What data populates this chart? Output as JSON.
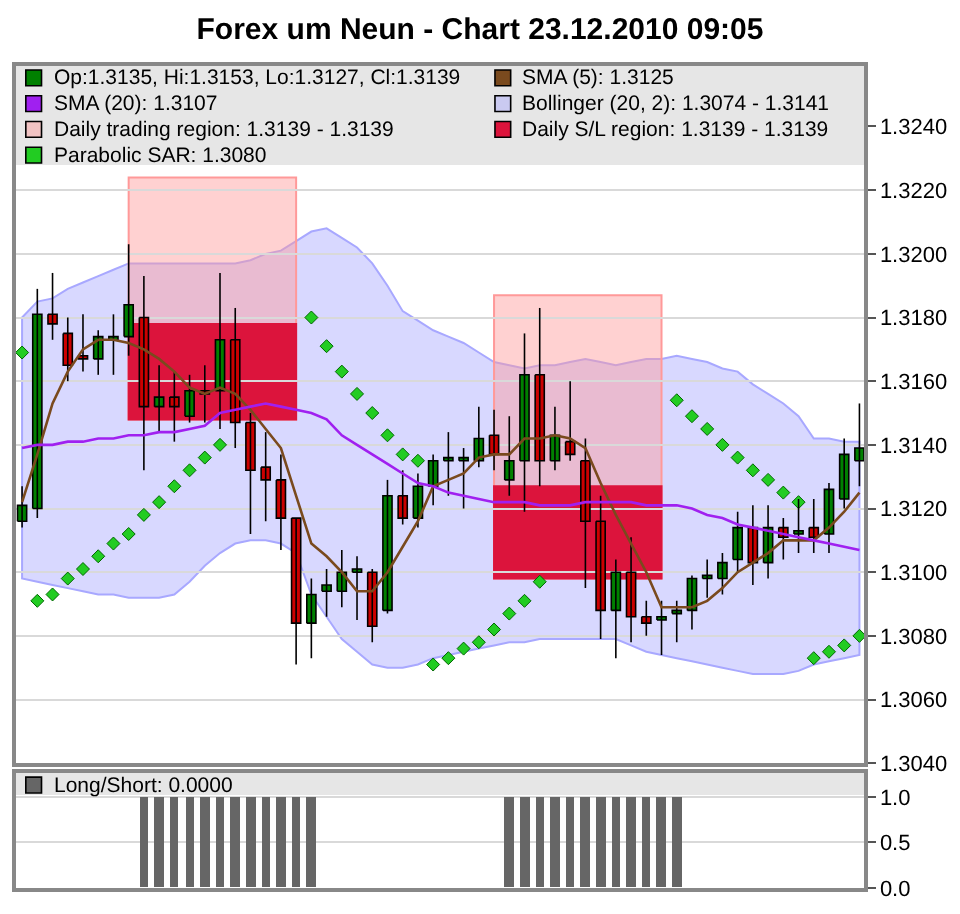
{
  "chart_data": [
    {
      "type": "candlestick",
      "title": "Forex um Neun - Chart 23.12.2010 09:05",
      "categories": [
        null,
        null,
        null,
        null,
        null,
        null,
        null,
        null,
        null,
        null,
        null,
        null,
        null,
        null,
        null,
        null,
        null,
        null,
        null,
        null,
        null,
        null,
        null,
        null,
        null,
        null,
        null,
        null,
        null,
        null,
        null,
        null,
        null,
        null,
        null,
        null,
        null,
        null,
        null,
        null,
        null,
        null,
        null,
        null,
        null,
        null,
        null,
        null,
        null,
        null,
        null,
        null,
        null,
        null,
        null,
        null
      ],
      "ylim": [
        1.304,
        1.3259
      ],
      "yticks": [
        {
          "value": 1.304,
          "label": "1.3040"
        },
        {
          "value": 1.306,
          "label": "1.3060"
        },
        {
          "value": 1.308,
          "label": "1.3080"
        },
        {
          "value": 1.31,
          "label": "1.3100"
        },
        {
          "value": 1.312,
          "label": "1.3120"
        },
        {
          "value": 1.314,
          "label": "1.3140"
        },
        {
          "value": 1.316,
          "label": "1.3160"
        },
        {
          "value": 1.318,
          "label": "1.3180"
        },
        {
          "value": 1.32,
          "label": "1.3200"
        },
        {
          "value": 1.322,
          "label": "1.3220"
        },
        {
          "value": 1.324,
          "label": "1.3240"
        }
      ],
      "grid": "y",
      "legend": "top",
      "series": [
        {
          "type": "candlestick",
          "name": "Op:1.3135, Hi:1.3153, Lo:1.3127, Cl:1.3139",
          "colors": [
            "#008000",
            "#008000",
            "#cc0000",
            "#cc0000",
            "#cc0000",
            "#008000",
            "#008000",
            "#008000",
            "#cc0000",
            "#008000",
            "#cc0000",
            "#008000",
            "#cc0000",
            "#008000",
            "#cc0000",
            "#cc0000",
            "#cc0000",
            "#cc0000",
            "#cc0000",
            "#008000",
            "#008000",
            "#008000",
            "#008000",
            "#cc0000",
            "#008000",
            "#cc0000",
            "#008000",
            "#008000",
            "#008000",
            "#008000",
            "#008000",
            "#cc0000",
            "#008000",
            "#008000",
            "#cc0000",
            "#008000",
            "#cc0000",
            "#cc0000",
            "#cc0000",
            "#008000",
            "#cc0000",
            "#cc0000",
            "#008000",
            "#008000",
            "#008000",
            "#008000",
            "#008000",
            "#008000",
            "#cc0000",
            "#008000",
            "#cc0000",
            "#008000",
            "#cc0000",
            "#008000",
            "#008000",
            "#008000"
          ],
          "ohlc": [
            [
              1.3116,
              1.3127,
              1.3114,
              1.3121
            ],
            [
              1.312,
              1.3189,
              1.3117,
              1.3181
            ],
            [
              1.3181,
              1.3194,
              1.3173,
              1.3178
            ],
            [
              1.3175,
              1.318,
              1.316,
              1.3165
            ],
            [
              1.3168,
              1.3181,
              1.3163,
              1.3167
            ],
            [
              1.3167,
              1.3176,
              1.3162,
              1.3174
            ],
            [
              1.3173,
              1.3181,
              1.3162,
              1.3174
            ],
            [
              1.3174,
              1.3203,
              1.3168,
              1.3184
            ],
            [
              1.318,
              1.3193,
              1.3132,
              1.3152
            ],
            [
              1.3152,
              1.3165,
              1.3144,
              1.3155
            ],
            [
              1.3155,
              1.3163,
              1.3141,
              1.3152
            ],
            [
              1.3149,
              1.3162,
              1.3147,
              1.3157
            ],
            [
              1.3157,
              1.3165,
              1.3147,
              1.3156
            ],
            [
              1.3157,
              1.3194,
              1.3145,
              1.3173
            ],
            [
              1.3173,
              1.3183,
              1.3139,
              1.3147
            ],
            [
              1.3147,
              1.315,
              1.3112,
              1.3132
            ],
            [
              1.3133,
              1.3144,
              1.3116,
              1.3129
            ],
            [
              1.3129,
              1.3137,
              1.3107,
              1.3117
            ],
            [
              1.3117,
              1.3117,
              1.3071,
              1.3084
            ],
            [
              1.3084,
              1.3098,
              1.3073,
              1.3093
            ],
            [
              1.3094,
              1.3101,
              1.3086,
              1.3096
            ],
            [
              1.3094,
              1.3107,
              1.3089,
              1.31
            ],
            [
              1.31,
              1.3105,
              1.3085,
              1.3101
            ],
            [
              1.31,
              1.3101,
              1.3078,
              1.3083
            ],
            [
              1.3088,
              1.3129,
              1.3087,
              1.3124
            ],
            [
              1.3124,
              1.3132,
              1.3115,
              1.3117
            ],
            [
              1.3117,
              1.3131,
              1.3114,
              1.3127
            ],
            [
              1.3127,
              1.3137,
              1.3121,
              1.3135
            ],
            [
              1.3135,
              1.3144,
              1.3124,
              1.3136
            ],
            [
              1.3135,
              1.3139,
              1.312,
              1.3136
            ],
            [
              1.3135,
              1.3152,
              1.3133,
              1.3142
            ],
            [
              1.3143,
              1.3151,
              1.3132,
              1.3137
            ],
            [
              1.3129,
              1.3149,
              1.3124,
              1.3135
            ],
            [
              1.3135,
              1.3175,
              1.3119,
              1.3162
            ],
            [
              1.3162,
              1.3183,
              1.3127,
              1.3135
            ],
            [
              1.3135,
              1.3152,
              1.3132,
              1.3143
            ],
            [
              1.3141,
              1.316,
              1.3135,
              1.3137
            ],
            [
              1.3135,
              1.3142,
              1.3095,
              1.3116
            ],
            [
              1.3116,
              1.3124,
              1.3079,
              1.3088
            ],
            [
              1.3088,
              1.3104,
              1.3073,
              1.31
            ],
            [
              1.31,
              1.3111,
              1.3078,
              1.3086
            ],
            [
              1.3086,
              1.3091,
              1.308,
              1.3084
            ],
            [
              1.3085,
              1.3091,
              1.3074,
              1.3086
            ],
            [
              1.3087,
              1.3091,
              1.3078,
              1.3088
            ],
            [
              1.3088,
              1.3099,
              1.3082,
              1.3098
            ],
            [
              1.3098,
              1.3104,
              1.3092,
              1.3099
            ],
            [
              1.3098,
              1.3106,
              1.3093,
              1.3103
            ],
            [
              1.3104,
              1.3119,
              1.31,
              1.3114
            ],
            [
              1.3114,
              1.3121,
              1.3096,
              1.3103
            ],
            [
              1.3103,
              1.3121,
              1.3098,
              1.3114
            ],
            [
              1.3114,
              1.3117,
              1.3104,
              1.3111
            ],
            [
              1.3112,
              1.3123,
              1.3106,
              1.3113
            ],
            [
              1.3114,
              1.3123,
              1.3106,
              1.3111
            ],
            [
              1.3112,
              1.3128,
              1.3106,
              1.3126
            ],
            [
              1.3123,
              1.3142,
              1.312,
              1.3137
            ],
            [
              1.3135,
              1.3153,
              1.3127,
              1.3139
            ]
          ]
        },
        {
          "type": "line",
          "name": "SMA (5): 1.3125",
          "color": "#7a4a1e",
          "values": [
            1.3122,
            1.3137,
            1.3153,
            1.3163,
            1.317,
            1.3173,
            1.3173,
            1.3172,
            1.317,
            1.3167,
            1.3163,
            1.3158,
            1.3156,
            1.3158,
            1.3156,
            1.3151,
            1.3145,
            1.3139,
            1.3124,
            1.3109,
            1.3105,
            1.31,
            1.3094,
            1.3094,
            1.31,
            1.3108,
            1.3116,
            1.3127,
            1.3129,
            1.3131,
            1.3136,
            1.3137,
            1.3137,
            1.3142,
            1.3142,
            1.3143,
            1.3142,
            1.3139,
            1.3128,
            1.3118,
            1.3109,
            1.31,
            1.3089,
            1.3089,
            1.3089,
            1.3091,
            1.3095,
            1.31,
            1.3103,
            1.3106,
            1.311,
            1.311,
            1.311,
            1.3114,
            1.3119,
            1.3125
          ]
        },
        {
          "type": "line",
          "name": "SMA (20): 1.3107",
          "color": "#a020f0",
          "values": [
            1.3139,
            1.314,
            1.314,
            1.3141,
            1.3141,
            1.3142,
            1.3142,
            1.3143,
            1.3143,
            1.3144,
            1.3144,
            1.3145,
            1.3146,
            1.315,
            1.3151,
            1.3152,
            1.3153,
            1.3152,
            1.3151,
            1.315,
            1.3148,
            1.3143,
            1.314,
            1.3137,
            1.3134,
            1.3131,
            1.3128,
            1.3127,
            1.3125,
            1.3124,
            1.3123,
            1.3122,
            1.3122,
            1.3122,
            1.3121,
            1.3121,
            1.3121,
            1.3122,
            1.3122,
            1.3122,
            1.3122,
            1.3121,
            1.3121,
            1.3121,
            1.312,
            1.3118,
            1.3117,
            1.3115,
            1.3114,
            1.3113,
            1.3112,
            1.3111,
            1.311,
            1.3109,
            1.3108,
            1.3107
          ]
        },
        {
          "type": "area",
          "name": "Bollinger (20, 2): 1.3074 - 1.3141",
          "color": "#a8a8ff",
          "values": [
            null,
            null,
            null,
            null,
            null,
            null,
            null,
            null,
            null,
            null,
            null,
            null,
            null,
            null,
            null,
            null,
            null,
            null,
            null,
            null,
            null,
            null,
            null,
            null,
            null,
            null,
            null,
            null,
            null,
            null,
            null,
            null,
            null,
            null,
            null,
            null,
            null,
            null,
            null,
            null,
            null,
            null,
            null,
            null,
            null,
            null,
            null,
            null,
            null,
            null,
            null,
            null,
            null,
            null,
            null,
            null
          ],
          "upper": [
            1.318,
            1.3185,
            1.3186,
            1.3189,
            1.3191,
            1.3193,
            1.3195,
            1.3197,
            1.3197,
            1.3197,
            1.3197,
            1.3197,
            1.3197,
            1.3197,
            1.3197,
            1.3198,
            1.32,
            1.3201,
            1.3204,
            1.3207,
            1.3208,
            1.3205,
            1.3202,
            1.3197,
            1.319,
            1.3182,
            1.3179,
            1.3176,
            1.3174,
            1.3172,
            1.3169,
            1.3166,
            1.3165,
            1.3164,
            1.3165,
            1.3165,
            1.3166,
            1.3167,
            1.3166,
            1.3165,
            1.3166,
            1.3167,
            1.3167,
            1.3168,
            1.3167,
            1.3166,
            1.3164,
            1.3163,
            1.3159,
            1.3156,
            1.3153,
            1.3149,
            1.3142,
            1.3142,
            1.3141,
            1.3141
          ],
          "lower": [
            1.3098,
            1.3097,
            1.3096,
            1.3095,
            1.3094,
            1.3093,
            1.3093,
            1.3092,
            1.3092,
            1.3092,
            1.3093,
            1.3097,
            1.3102,
            1.3106,
            1.3109,
            1.311,
            1.311,
            1.3109,
            1.3106,
            1.3093,
            1.3086,
            1.3079,
            1.3075,
            1.3071,
            1.307,
            1.307,
            1.3071,
            1.3073,
            1.3074,
            1.3075,
            1.3076,
            1.3077,
            1.3078,
            1.3078,
            1.3079,
            1.3079,
            1.3079,
            1.3079,
            1.3079,
            1.3079,
            1.3077,
            1.3075,
            1.3074,
            1.3073,
            1.3072,
            1.3071,
            1.307,
            1.3069,
            1.3068,
            1.3068,
            1.3068,
            1.3069,
            1.3071,
            1.3072,
            1.3073,
            1.3074
          ]
        },
        {
          "type": "area",
          "name": "Daily trading region: 1.3139 - 1.3139",
          "color": "#ff9999",
          "values": [
            null,
            null,
            null,
            null,
            null,
            null,
            null,
            null,
            null,
            null,
            null,
            null,
            null,
            null,
            null,
            null,
            null,
            null,
            null,
            null,
            null,
            null,
            null,
            null,
            null,
            null,
            null,
            null,
            null,
            null,
            null,
            null,
            null,
            null,
            null,
            null,
            null,
            null,
            null,
            null,
            null,
            null,
            null,
            null,
            null,
            null,
            null,
            null,
            null,
            null,
            null,
            null,
            null,
            null,
            null,
            null
          ],
          "upper": [
            null,
            null,
            null,
            null,
            null,
            null,
            null,
            1.3224,
            1.3224,
            1.3224,
            1.3224,
            1.3224,
            1.3224,
            1.3224,
            1.3224,
            1.3224,
            1.3224,
            1.3224,
            1.3224,
            null,
            null,
            null,
            null,
            null,
            null,
            null,
            null,
            null,
            null,
            null,
            null,
            1.3187,
            1.3187,
            1.3187,
            1.3187,
            1.3187,
            1.3187,
            1.3187,
            1.3187,
            1.3187,
            1.3187,
            1.3187,
            1.3187,
            null,
            null,
            null,
            null,
            null,
            null,
            null,
            null,
            null,
            null,
            null,
            null,
            null
          ],
          "lower": [
            null,
            null,
            null,
            null,
            null,
            null,
            null,
            1.3148,
            1.3148,
            1.3148,
            1.3148,
            1.3148,
            1.3148,
            1.3148,
            1.3148,
            1.3148,
            1.3148,
            1.3148,
            1.3148,
            null,
            null,
            null,
            null,
            null,
            null,
            null,
            null,
            null,
            null,
            null,
            null,
            1.3098,
            1.3098,
            1.3098,
            1.3098,
            1.3098,
            1.3098,
            1.3098,
            1.3098,
            1.3098,
            1.3098,
            1.3098,
            1.3098,
            null,
            null,
            null,
            null,
            null,
            null,
            null,
            null,
            null,
            null,
            null,
            null,
            null
          ]
        },
        {
          "type": "area",
          "name": "Daily S/L region: 1.3139 - 1.3139",
          "color": "#dc143c",
          "values": [
            null,
            null,
            null,
            null,
            null,
            null,
            null,
            null,
            null,
            null,
            null,
            null,
            null,
            null,
            null,
            null,
            null,
            null,
            null,
            null,
            null,
            null,
            null,
            null,
            null,
            null,
            null,
            null,
            null,
            null,
            null,
            null,
            null,
            null,
            null,
            null,
            null,
            null,
            null,
            null,
            null,
            null,
            null,
            null,
            null,
            null,
            null,
            null,
            null,
            null,
            null,
            null,
            null,
            null,
            null,
            null
          ],
          "upper": [
            null,
            null,
            null,
            null,
            null,
            null,
            null,
            1.3178,
            1.3178,
            1.3178,
            1.3178,
            1.3178,
            1.3178,
            1.3178,
            1.3178,
            1.3178,
            1.3178,
            1.3178,
            1.3178,
            null,
            null,
            null,
            null,
            null,
            null,
            null,
            null,
            null,
            null,
            null,
            null,
            1.3127,
            1.3127,
            1.3127,
            1.3127,
            1.3127,
            1.3127,
            1.3127,
            1.3127,
            1.3127,
            1.3127,
            1.3127,
            1.3127,
            null,
            null,
            null,
            null,
            null,
            null,
            null,
            null,
            null,
            null,
            null,
            null,
            null
          ],
          "lower": [
            null,
            null,
            null,
            null,
            null,
            null,
            null,
            1.3148,
            1.3148,
            1.3148,
            1.3148,
            1.3148,
            1.3148,
            1.3148,
            1.3148,
            1.3148,
            1.3148,
            1.3148,
            1.3148,
            null,
            null,
            null,
            null,
            null,
            null,
            null,
            null,
            null,
            null,
            null,
            null,
            1.3098,
            1.3098,
            1.3098,
            1.3098,
            1.3098,
            1.3098,
            1.3098,
            1.3098,
            1.3098,
            1.3098,
            1.3098,
            1.3098,
            null,
            null,
            null,
            null,
            null,
            null,
            null,
            null,
            null,
            null,
            null,
            null,
            null
          ]
        },
        {
          "type": "scatter",
          "name": "Parabolic SAR: 1.3080",
          "color": "#22cc22",
          "marker": "diamond",
          "values": [
            1.3169,
            1.3091,
            1.3093,
            1.3098,
            1.3101,
            1.3105,
            1.3109,
            1.3112,
            1.3118,
            1.3122,
            1.3127,
            1.3132,
            1.3136,
            1.314,
            null,
            null,
            null,
            null,
            null,
            1.318,
            1.3171,
            1.3163,
            1.3156,
            1.315,
            1.3143,
            1.3137,
            1.3135,
            1.3071,
            1.3073,
            1.3076,
            1.3078,
            1.3082,
            1.3087,
            1.3091,
            1.3097,
            null,
            null,
            null,
            null,
            null,
            null,
            null,
            null,
            1.3154,
            1.3149,
            1.3145,
            1.314,
            1.3136,
            1.3132,
            1.3129,
            1.3125,
            1.3122,
            1.3073,
            1.3075,
            1.3077,
            1.308
          ]
        }
      ]
    },
    {
      "type": "bar",
      "categories": [
        null,
        null,
        null,
        null,
        null,
        null,
        null,
        null,
        null,
        null,
        null,
        null,
        null,
        null,
        null,
        null,
        null,
        null,
        null,
        null,
        null,
        null,
        null,
        null,
        null,
        null,
        null,
        null,
        null,
        null,
        null,
        null,
        null,
        null,
        null,
        null,
        null,
        null,
        null,
        null,
        null,
        null,
        null,
        null,
        null,
        null,
        null,
        null,
        null,
        null,
        null,
        null,
        null,
        null,
        null,
        null
      ],
      "ylim": [
        0,
        1.26
      ],
      "yticks": [
        {
          "value": 0,
          "label": "0.0"
        },
        {
          "value": 0.5,
          "label": "0.5"
        },
        {
          "value": 1,
          "label": "1.0"
        }
      ],
      "grid": "y",
      "legend": "top left",
      "series": [
        {
          "name": "Long/Short: 0.0000",
          "color": "#666666",
          "values": [
            0,
            0,
            0,
            0,
            0,
            0,
            0,
            0,
            1,
            1,
            1,
            1,
            1,
            1,
            1,
            1,
            1,
            1,
            1,
            1,
            0,
            0,
            0,
            0,
            0,
            0,
            0,
            0,
            0,
            0,
            0,
            0,
            1,
            1,
            1,
            1,
            1,
            1,
            1,
            1,
            1,
            1,
            1,
            1,
            0,
            0,
            0,
            0,
            0,
            0,
            0,
            0,
            0,
            0,
            0,
            0
          ]
        }
      ]
    }
  ]
}
